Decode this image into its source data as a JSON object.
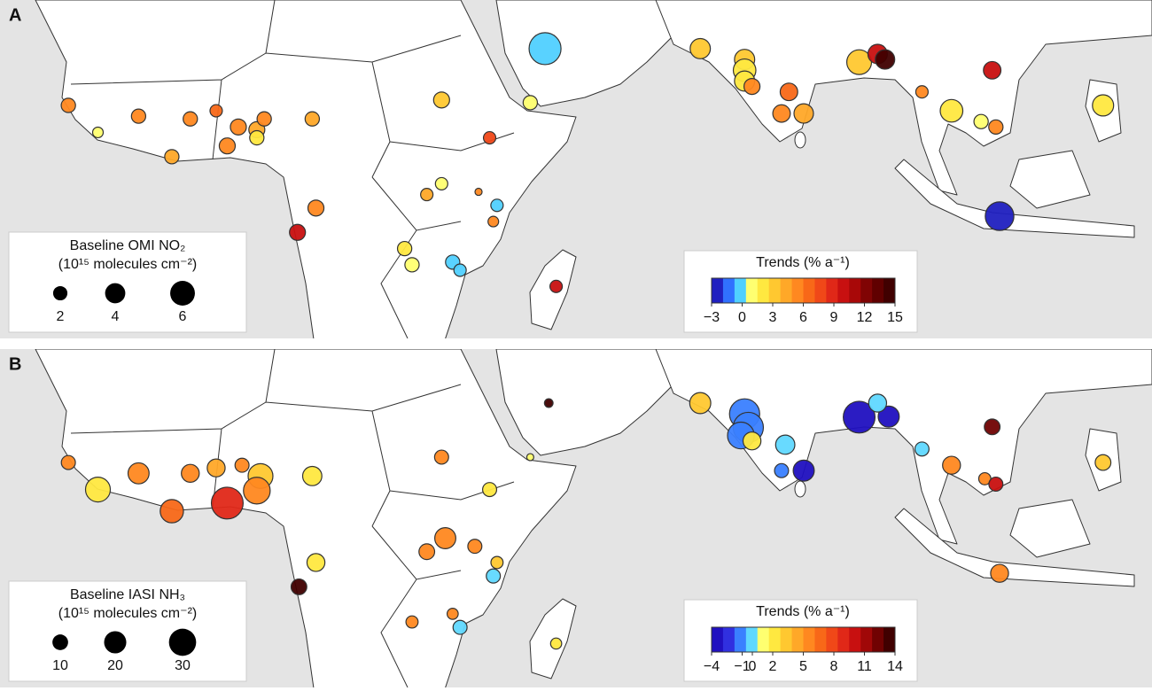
{
  "panels": [
    {
      "label": "A",
      "legend_title": "Baseline OMI NO₂",
      "legend_units": "(10¹⁵ molecules cm⁻²)",
      "size_legend": [
        2,
        4,
        6
      ],
      "colorbar_title": "Trends (% a⁻¹)",
      "colorbar_ticks": [
        {
          "value": -3,
          "label": "−3"
        },
        0,
        3,
        6,
        9,
        12,
        15
      ],
      "colors": [
        "#2020c0",
        "#3070ff",
        "#50d0ff",
        "#ffff70",
        "#ffe840",
        "#ffc830",
        "#ffa828",
        "#ff8820",
        "#f86818",
        "#f04818",
        "#e02818",
        "#c81010",
        "#a80808",
        "#800404",
        "#600000",
        "#400000"
      ],
      "points": [
        {
          "lon": 47,
          "lat": 25,
          "trend": -0.5,
          "baseline": 10
        },
        {
          "lon": 68,
          "lat": 25,
          "trend": 3,
          "baseline": 4
        },
        {
          "lon": 74,
          "lat": 23,
          "trend": 3,
          "baseline": 4
        },
        {
          "lon": 74,
          "lat": 21,
          "trend": 2,
          "baseline": 5
        },
        {
          "lon": 74,
          "lat": 19,
          "trend": 2,
          "baseline": 4
        },
        {
          "lon": 75,
          "lat": 18,
          "trend": 5,
          "baseline": 2.5
        },
        {
          "lon": 80,
          "lat": 17,
          "trend": 6,
          "baseline": 3
        },
        {
          "lon": 79,
          "lat": 13,
          "trend": 5,
          "baseline": 3
        },
        {
          "lon": 82,
          "lat": 13,
          "trend": 4,
          "baseline": 3.7
        },
        {
          "lon": 89.5,
          "lat": 22.5,
          "trend": 3,
          "baseline": 6
        },
        {
          "lon": 92,
          "lat": 24,
          "trend": 10,
          "baseline": 3.7
        },
        {
          "lon": 93,
          "lat": 23,
          "trend": 14,
          "baseline": 3.7
        },
        {
          "lon": 98,
          "lat": 17,
          "trend": 5,
          "baseline": 1.5
        },
        {
          "lon": 107.5,
          "lat": 21,
          "trend": 10,
          "baseline": 3
        },
        {
          "lon": 102,
          "lat": 13.5,
          "trend": 2,
          "baseline": 5
        },
        {
          "lon": 106,
          "lat": 11.5,
          "trend": 1,
          "baseline": 2
        },
        {
          "lon": 108,
          "lat": 10.5,
          "trend": 5,
          "baseline": 2
        },
        {
          "lon": 122.5,
          "lat": 14.5,
          "trend": 2,
          "baseline": 4.4
        },
        {
          "lon": 108.5,
          "lat": -6,
          "trend": -3,
          "baseline": 8
        },
        {
          "lon": 33,
          "lat": 15.5,
          "trend": 3,
          "baseline": 2.5
        },
        {
          "lon": 45,
          "lat": 15,
          "trend": 1,
          "baseline": 2
        },
        {
          "lon": 39.5,
          "lat": 8.5,
          "trend": 8,
          "baseline": 1.5
        },
        {
          "lon": 33,
          "lat": 0,
          "trend": 1,
          "baseline": 1.5
        },
        {
          "lon": 31,
          "lat": -2,
          "trend": 4,
          "baseline": 1.5
        },
        {
          "lon": 38,
          "lat": -1.5,
          "trend": 5,
          "baseline": 0.5
        },
        {
          "lon": 40.5,
          "lat": -4,
          "trend": -0.5,
          "baseline": 1.5
        },
        {
          "lon": 40,
          "lat": -7,
          "trend": 5,
          "baseline": 1.1
        },
        {
          "lon": 16,
          "lat": -4.5,
          "trend": 5,
          "baseline": 2.5
        },
        {
          "lon": 13.5,
          "lat": -9,
          "trend": 10,
          "baseline": 2.5
        },
        {
          "lon": 28,
          "lat": -12,
          "trend": 2,
          "baseline": 2
        },
        {
          "lon": 29,
          "lat": -15,
          "trend": 1,
          "baseline": 2
        },
        {
          "lon": 34.5,
          "lat": -14.5,
          "trend": -0.5,
          "baseline": 2
        },
        {
          "lon": 35.5,
          "lat": -16,
          "trend": -0.5,
          "baseline": 1.5
        },
        {
          "lon": 48.5,
          "lat": -19,
          "trend": 10,
          "baseline": 1.5
        },
        {
          "lon": -17.5,
          "lat": 14.5,
          "trend": 5,
          "baseline": 2
        },
        {
          "lon": -13.5,
          "lat": 9.5,
          "trend": 1,
          "baseline": 1.1
        },
        {
          "lon": -8,
          "lat": 12.5,
          "trend": 5,
          "baseline": 2
        },
        {
          "lon": -1,
          "lat": 12,
          "trend": 5,
          "baseline": 2
        },
        {
          "lon": 2.5,
          "lat": 13.5,
          "trend": 7,
          "baseline": 1.5
        },
        {
          "lon": 5.5,
          "lat": 10.5,
          "trend": 5,
          "baseline": 2.5
        },
        {
          "lon": 8,
          "lat": 10,
          "trend": 4,
          "baseline": 2.5
        },
        {
          "lon": 9,
          "lat": 12,
          "trend": 5,
          "baseline": 2
        },
        {
          "lon": 8,
          "lat": 8.5,
          "trend": 2,
          "baseline": 2
        },
        {
          "lon": 4,
          "lat": 7,
          "trend": 5,
          "baseline": 2.5
        },
        {
          "lon": -3.5,
          "lat": 5,
          "trend": 4,
          "baseline": 2
        },
        {
          "lon": 15.5,
          "lat": 12,
          "trend": 4,
          "baseline": 2
        }
      ]
    },
    {
      "label": "B",
      "legend_title": "Baseline IASI NH₃",
      "legend_units": "(10¹⁵ molecules cm⁻²)",
      "size_legend": [
        10,
        20,
        30
      ],
      "colorbar_title": "Trends (% a⁻¹)",
      "colorbar_ticks": [
        {
          "value": -4,
          "label": "−4"
        },
        {
          "value": -1,
          "label": "−1"
        },
        0,
        2,
        5,
        8,
        11,
        14
      ],
      "colors": [
        "#2010c0",
        "#3030e0",
        "#3a80ff",
        "#60d8ff",
        "#ffff70",
        "#ffe840",
        "#ffc830",
        "#ffa828",
        "#ff8820",
        "#f86818",
        "#f04818",
        "#e02818",
        "#c81010",
        "#a00808",
        "#700202",
        "#400000"
      ],
      "points": [
        {
          "lon": 47.5,
          "lat": 24,
          "trend": 14,
          "baseline": 3
        },
        {
          "lon": 68,
          "lat": 24,
          "trend": 3,
          "baseline": 18
        },
        {
          "lon": 74,
          "lat": 22,
          "trend": -1.5,
          "baseline": 37
        },
        {
          "lon": 74.5,
          "lat": 19.5,
          "trend": -1.5,
          "baseline": 37
        },
        {
          "lon": 73.5,
          "lat": 18,
          "trend": -1.5,
          "baseline": 29
        },
        {
          "lon": 75,
          "lat": 17,
          "trend": 2,
          "baseline": 13
        },
        {
          "lon": 79.5,
          "lat": 16.3,
          "trend": -0.5,
          "baseline": 15
        },
        {
          "lon": 79,
          "lat": 11.5,
          "trend": -1.5,
          "baseline": 8
        },
        {
          "lon": 82,
          "lat": 11.5,
          "trend": -3.5,
          "baseline": 18
        },
        {
          "lon": 89.5,
          "lat": 21.4,
          "trend": -4,
          "baseline": 41
        },
        {
          "lon": 93.5,
          "lat": 21.5,
          "trend": -3.5,
          "baseline": 18
        },
        {
          "lon": 92,
          "lat": 24,
          "trend": -0.5,
          "baseline": 13
        },
        {
          "lon": 98,
          "lat": 15.5,
          "trend": -0.5,
          "baseline": 8
        },
        {
          "lon": 107.5,
          "lat": 19.6,
          "trend": 12,
          "baseline": 10
        },
        {
          "lon": 102,
          "lat": 12.5,
          "trend": 5,
          "baseline": 13
        },
        {
          "lon": 106.5,
          "lat": 10,
          "trend": 5,
          "baseline": 6
        },
        {
          "lon": 108,
          "lat": 9,
          "trend": 10,
          "baseline": 8
        },
        {
          "lon": 122.5,
          "lat": 13,
          "trend": 3,
          "baseline": 10
        },
        {
          "lon": 108.5,
          "lat": -7.5,
          "trend": 5,
          "baseline": 13
        },
        {
          "lon": 33,
          "lat": 14,
          "trend": 5,
          "baseline": 8
        },
        {
          "lon": 45,
          "lat": 14,
          "trend": 1,
          "baseline": 2
        },
        {
          "lon": 39.5,
          "lat": 8,
          "trend": 2,
          "baseline": 8
        },
        {
          "lon": 33.5,
          "lat": -1,
          "trend": 5,
          "baseline": 18
        },
        {
          "lon": 31,
          "lat": -3.5,
          "trend": 6,
          "baseline": 10
        },
        {
          "lon": 37.5,
          "lat": -2.5,
          "trend": 5,
          "baseline": 8
        },
        {
          "lon": 40.5,
          "lat": -5.5,
          "trend": 3,
          "baseline": 6
        },
        {
          "lon": 40,
          "lat": -8,
          "trend": -0.5,
          "baseline": 8
        },
        {
          "lon": 16,
          "lat": -5.5,
          "trend": 2,
          "baseline": 13
        },
        {
          "lon": 13.7,
          "lat": -10,
          "trend": 14,
          "baseline": 10
        },
        {
          "lon": 29,
          "lat": -16.5,
          "trend": 6,
          "baseline": 6
        },
        {
          "lon": 34.5,
          "lat": -15,
          "trend": 5,
          "baseline": 5
        },
        {
          "lon": 35.5,
          "lat": -17.5,
          "trend": -0.5,
          "baseline": 8
        },
        {
          "lon": 48.5,
          "lat": -20.5,
          "trend": 2,
          "baseline": 5
        },
        {
          "lon": -17.5,
          "lat": 13,
          "trend": 6,
          "baseline": 8
        },
        {
          "lon": -13.5,
          "lat": 8,
          "trend": 2,
          "baseline": 25
        },
        {
          "lon": -8,
          "lat": 11,
          "trend": 5,
          "baseline": 18
        },
        {
          "lon": -1,
          "lat": 11,
          "trend": 5,
          "baseline": 13
        },
        {
          "lon": 2.5,
          "lat": 12,
          "trend": 4,
          "baseline": 13
        },
        {
          "lon": 6,
          "lat": 12.5,
          "trend": 5,
          "baseline": 8
        },
        {
          "lon": 8.5,
          "lat": 10.5,
          "trend": 3,
          "baseline": 25
        },
        {
          "lon": 8,
          "lat": 7.8,
          "trend": 5,
          "baseline": 29
        },
        {
          "lon": 4,
          "lat": 5.5,
          "trend": 9,
          "baseline": 41
        },
        {
          "lon": -3.5,
          "lat": 4,
          "trend": 7,
          "baseline": 22
        },
        {
          "lon": 15.5,
          "lat": 10.5,
          "trend": 2,
          "baseline": 15
        }
      ]
    }
  ]
}
